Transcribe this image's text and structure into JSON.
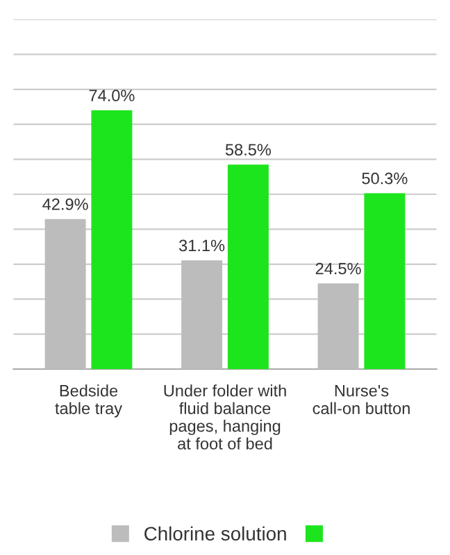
{
  "chart_data": {
    "type": "bar",
    "categories": [
      "Bedside\ntable tray",
      "Under folder with\nfluid balance\npages, hanging\nat foot of bed",
      "Nurse's\ncall-on button"
    ],
    "series": [
      {
        "name": "Chlorine solution",
        "color": "#bcbcbc",
        "values": [
          42.9,
          31.1,
          24.5
        ],
        "value_labels": [
          "42.9%",
          "31.1%",
          "24.5%"
        ]
      },
      {
        "color": "#1de51d",
        "values": [
          74.0,
          58.5,
          50.3
        ],
        "value_labels": [
          "74.0%",
          "58.5%",
          "50.3%"
        ]
      }
    ],
    "ylim": [
      0,
      100
    ],
    "yticks": [
      {
        "value": 0,
        "label": null
      },
      {
        "value": 10,
        "label": null
      },
      {
        "value": 20,
        "label": null
      },
      {
        "value": 30,
        "label": null
      },
      {
        "value": 40,
        "label": null
      },
      {
        "value": 50,
        "label": null
      },
      {
        "value": 60,
        "label": null
      },
      {
        "value": 70,
        "label": null
      },
      {
        "value": 80,
        "label": null
      },
      {
        "value": 90,
        "label": null
      },
      {
        "value": 100,
        "label": null
      }
    ],
    "grid": "y",
    "legend": "bottom",
    "tick_labels": "x"
  }
}
